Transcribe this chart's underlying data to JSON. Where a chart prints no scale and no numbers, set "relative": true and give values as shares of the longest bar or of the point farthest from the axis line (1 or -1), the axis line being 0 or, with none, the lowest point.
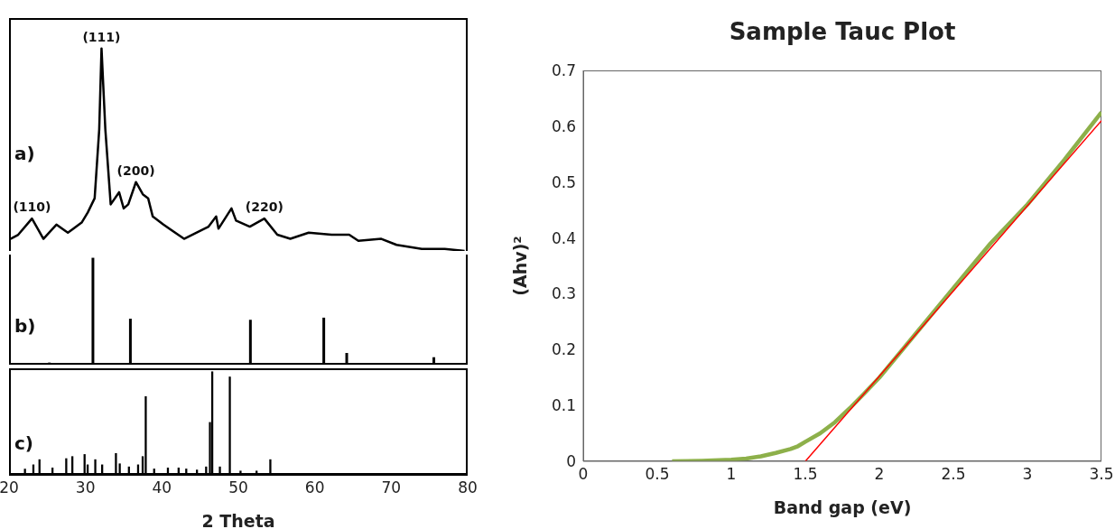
{
  "chart_data": [
    {
      "type": "line",
      "relative": true,
      "xlim": [
        20,
        80
      ],
      "tick_labels": false,
      "annotations": [
        "a)",
        {
          "text": "(110)",
          "x": 23.0,
          "y": 0.16
        },
        {
          "text": "(111)",
          "x": 32.1,
          "y": 1
        },
        {
          "text": "(200)",
          "x": 36.6,
          "y": 0.34
        },
        {
          "text": "(220)",
          "x": 53.4,
          "y": 0.16
        }
      ],
      "series": [
        {
          "color": "#000000",
          "x": [
            20.2,
            21.2,
            23.0,
            24.5,
            26.2,
            27.7,
            29.5,
            30.3,
            31.2,
            31.8,
            32.1,
            32.6,
            33.3,
            34.4,
            35.0,
            35.6,
            36.6,
            37.5,
            38.2,
            38.8,
            40.2,
            42.9,
            46.1,
            47.1,
            47.4,
            49.1,
            49.7,
            51.5,
            53.4,
            55.1,
            56.8,
            59.2,
            62.2,
            64.5,
            65.7,
            68.7,
            70.7,
            74.0,
            77.0,
            79.6
          ],
          "values": [
            0.06,
            0.08,
            0.16,
            0.06,
            0.13,
            0.09,
            0.14,
            0.19,
            0.26,
            0.6,
            1,
            0.6,
            0.23,
            0.29,
            0.21,
            0.23,
            0.34,
            0.28,
            0.26,
            0.17,
            0.13,
            0.06,
            0.12,
            0.17,
            0.11,
            0.21,
            0.15,
            0.12,
            0.16,
            0.08,
            0.06,
            0.09,
            0.08,
            0.08,
            0.05,
            0.06,
            0.03,
            0.01,
            0.01,
            0
          ]
        }
      ]
    },
    {
      "type": "bar",
      "relative": true,
      "xlim": [
        20,
        80
      ],
      "tick_labels": false,
      "annotations": [
        "b)"
      ],
      "series": [
        {
          "color": "#000000",
          "x": [
            25.3,
            31.0,
            35.9,
            51.6,
            61.2,
            64.2,
            75.6
          ],
          "values": [
            0.02,
            1,
            0.43,
            0.42,
            0.44,
            0.11,
            0.07
          ]
        }
      ]
    },
    {
      "type": "bar",
      "relative": true,
      "xlim": [
        20,
        80
      ],
      "xticks": [
        20,
        30,
        40,
        50,
        60,
        70,
        80
      ],
      "tick_labels": "x",
      "xlabel": "2 Theta",
      "annotations": [
        "c)"
      ],
      "series": [
        {
          "color": "#000000",
          "x": [
            22.1,
            23.2,
            24.0,
            25.7,
            27.5,
            28.3,
            29.9,
            30.3,
            31.3,
            32.2,
            34.0,
            34.5,
            35.7,
            36.9,
            37.5,
            37.9,
            39.0,
            40.8,
            42.2,
            43.2,
            44.6,
            45.8,
            46.3,
            46.6,
            47.6,
            48.9,
            50.3,
            52.4,
            54.2
          ],
          "values": [
            0.06,
            0.1,
            0.15,
            0.07,
            0.16,
            0.18,
            0.2,
            0.1,
            0.15,
            0.1,
            0.21,
            0.11,
            0.08,
            0.1,
            0.18,
            0.76,
            0.06,
            0.07,
            0.07,
            0.06,
            0.05,
            0.08,
            0.51,
            1,
            0.08,
            0.95,
            0.04,
            0.04,
            0.15
          ]
        }
      ]
    },
    {
      "type": "line",
      "title": "Sample Tauc Plot",
      "xlabel": "Band gap (eV)",
      "ylabel": "(Ahv)²",
      "xlim": [
        0,
        3.5
      ],
      "ylim": [
        0,
        0.7
      ],
      "xticks": [
        0,
        0.5,
        1,
        1.5,
        2,
        2.5,
        3,
        3.5
      ],
      "yticks": [
        0,
        0.1,
        0.2,
        0.3,
        0.4,
        0.5,
        0.6,
        0.7
      ],
      "series": [
        {
          "color": "#8db04a",
          "x": [
            0.6,
            0.8,
            1.0,
            1.1,
            1.2,
            1.3,
            1.4,
            1.45,
            1.5,
            1.6,
            1.7,
            1.8,
            1.9,
            2.0,
            2.25,
            2.5,
            2.75,
            3.0,
            3.25,
            3.5
          ],
          "values": [
            0,
            0.001,
            0.003,
            0.005,
            0.009,
            0.015,
            0.022,
            0.027,
            0.035,
            0.05,
            0.07,
            0.095,
            0.122,
            0.15,
            0.23,
            0.31,
            0.39,
            0.46,
            0.54,
            0.625
          ]
        },
        {
          "color": "#ff0000",
          "x": [
            1.5,
            3.5
          ],
          "values": [
            0,
            0.61
          ]
        }
      ]
    }
  ]
}
